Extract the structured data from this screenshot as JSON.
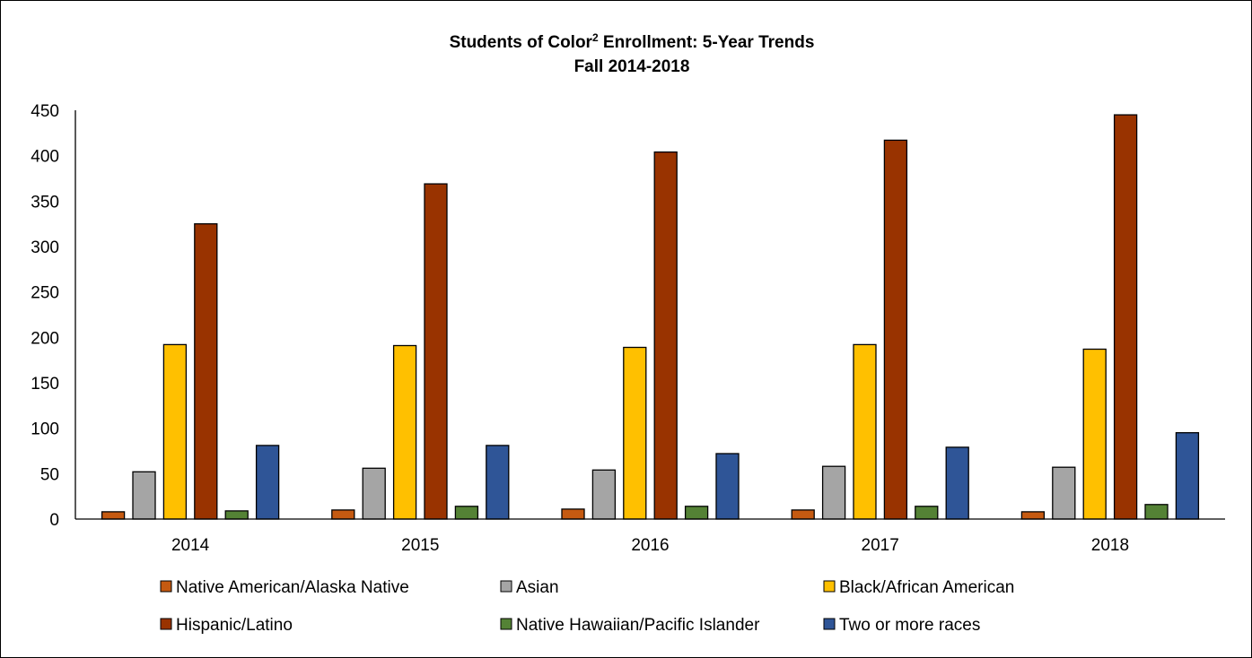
{
  "chart_data": {
    "type": "bar",
    "title": "Students of Color",
    "title_superscript": "2",
    "title_suffix": " Enrollment: 5-Year Trends",
    "subtitle": "Fall 2014-2018",
    "xlabel": "",
    "ylabel": "",
    "categories": [
      "2014",
      "2015",
      "2016",
      "2017",
      "2018"
    ],
    "ylim": [
      0,
      450
    ],
    "yticks": [
      0,
      50,
      100,
      150,
      200,
      250,
      300,
      350,
      400,
      450
    ],
    "grid": false,
    "legend_position": "bottom",
    "series": [
      {
        "name": "Native American/Alaska Native",
        "color": "#C55A11",
        "values": [
          8,
          10,
          11,
          10,
          8
        ]
      },
      {
        "name": "Asian",
        "color": "#A5A5A5",
        "values": [
          52,
          56,
          54,
          58,
          57
        ]
      },
      {
        "name": "Black/African American",
        "color": "#FFC000",
        "values": [
          192,
          191,
          189,
          192,
          187
        ]
      },
      {
        "name": "Hispanic/Latino",
        "color": "#993300",
        "values": [
          325,
          369,
          404,
          417,
          445
        ]
      },
      {
        "name": "Native Hawaiian/Pacific Islander",
        "color": "#548235",
        "values": [
          9,
          14,
          14,
          14,
          16
        ]
      },
      {
        "name": "Two or more races",
        "color": "#2F5597",
        "values": [
          81,
          81,
          72,
          79,
          95
        ]
      }
    ]
  }
}
